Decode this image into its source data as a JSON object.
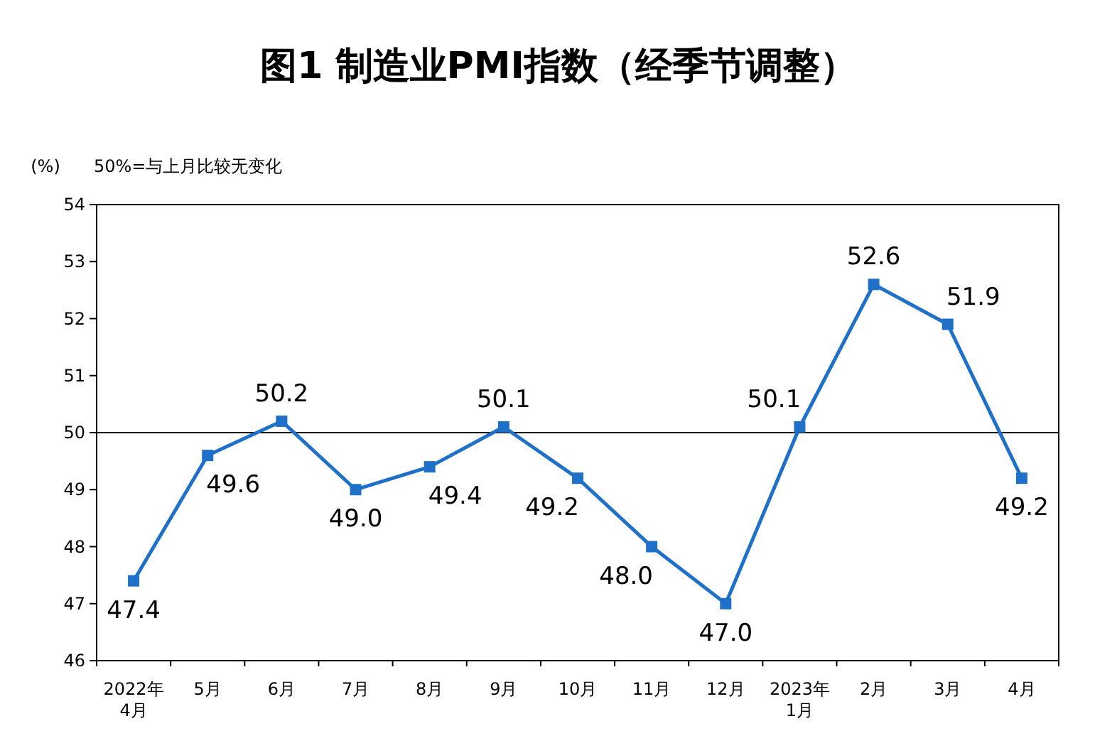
{
  "chart_data": {
    "type": "line",
    "title": "图1 制造业PMI指数（经季节调整）",
    "ylabel": "(%)",
    "annotations": [
      "50%=与上月比较无变化"
    ],
    "categories": [
      "2022年\n4月",
      "5月",
      "6月",
      "7月",
      "8月",
      "9月",
      "10月",
      "11月",
      "12月",
      "2023年\n1月",
      "2月",
      "3月",
      "4月"
    ],
    "series": [
      {
        "color": "#1f70c8",
        "values": [
          47.4,
          49.6,
          50.2,
          49.0,
          49.4,
          50.1,
          49.2,
          48.0,
          47.0,
          50.1,
          52.6,
          51.9,
          49.2
        ],
        "value_labels": [
          "47.4",
          "49.6",
          "50.2",
          "49.0",
          "49.4",
          "50.1",
          "49.2",
          "48.0",
          "47.0",
          "50.1",
          "52.6",
          "51.9",
          "49.2"
        ]
      }
    ],
    "ylim": [
      46,
      54
    ],
    "yticks": [
      46,
      47,
      48,
      49,
      50,
      51,
      52,
      53,
      54
    ],
    "ref_lines": [
      {
        "axis": "y",
        "value": 50,
        "color": "#000000"
      }
    ],
    "marker": "square",
    "line_style": "solid",
    "grid": false
  }
}
